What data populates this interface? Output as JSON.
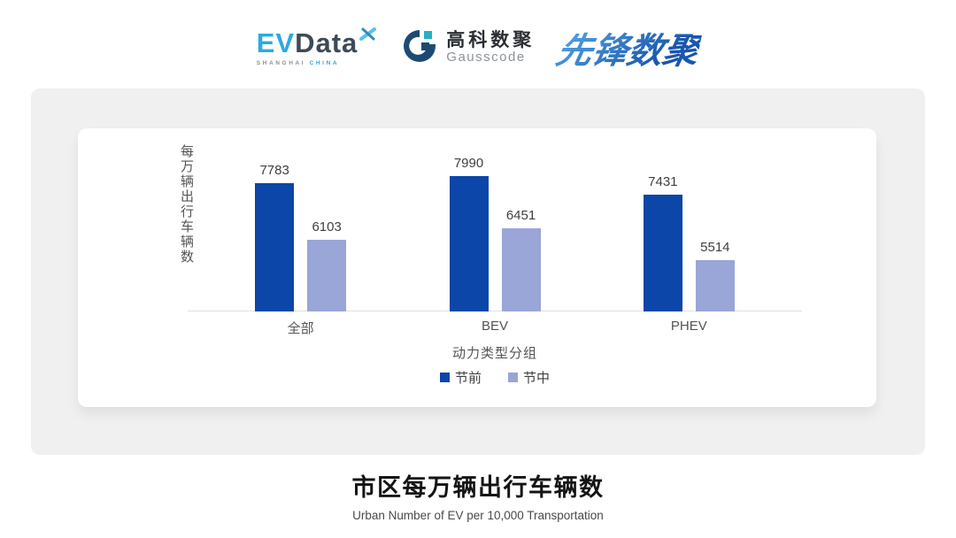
{
  "header": {
    "evdata_logo": {
      "ev": "EV",
      "data": "Data",
      "sub_left": "SHANGHAI",
      "sub_right": "CHINA"
    },
    "gausscode_logo": {
      "cn": "高科数聚",
      "en": "Gausscode"
    },
    "pioneer_logo": {
      "text": "先锋数聚"
    }
  },
  "chart_data": {
    "type": "bar",
    "title": "市区每万辆出行车辆数",
    "subtitle": "Urban Number of EV per 10,000 Transportation",
    "categories": [
      "全部",
      "BEV",
      "PHEV"
    ],
    "series": [
      {
        "name": "节前",
        "color": "#0B46A8",
        "values": [
          7783,
          7990,
          7431
        ]
      },
      {
        "name": "节中",
        "color": "#9AA5D8",
        "values": [
          6103,
          6451,
          5514
        ]
      }
    ],
    "xlabel": "动力类型分组",
    "ylabel": "每万辆出行车辆数",
    "ylim": [
      4000,
      8500
    ],
    "grid": false,
    "legend_position": "bottom",
    "data_labels": true
  },
  "colors": {
    "panel_bg": "#F0F0F1",
    "card_bg": "#FFFFFF",
    "axis_line": "#E2E2E2",
    "label_text": "#3F3F3F",
    "muted_text": "#555555",
    "title_text": "#141414",
    "evdata_cyan": "#29ABE2",
    "evdata_dark": "#3D4A57",
    "gausscode_navy": "#1C4A73",
    "gausscode_teal": "#25B0C4",
    "pioneer_light": "#55A6E6",
    "pioneer_dark": "#1A56AC"
  }
}
